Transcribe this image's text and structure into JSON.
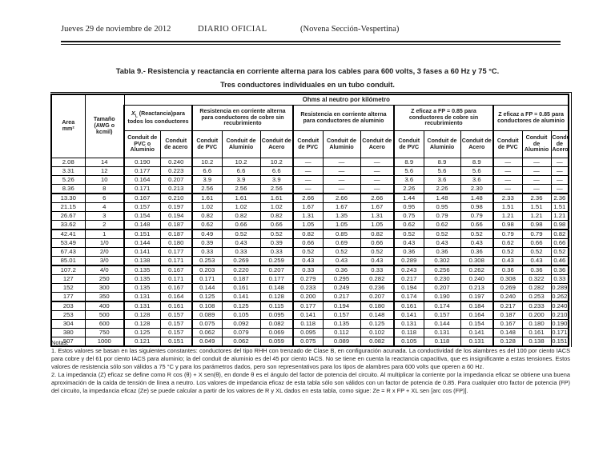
{
  "page_header": {
    "date": "Jueves 29 de noviembre de 2012",
    "publication": "DIARIO OFICIAL",
    "section": "(Novena Sección-Vespertina)"
  },
  "title": "Tabla 9.- Resistencia y reactancia en corriente alterna para los cables para 600 volts, 3 fases a 60 Hz y 75 °C.",
  "subtitle": "Tres conductores individuales en un tubo conduit.",
  "table": {
    "header": {
      "area_line1": "Area",
      "area_line2": "mm²",
      "size": "Tamaño (AWG o kcmil)",
      "ohms": "Ohms al neutro por kilómetro",
      "groups": [
        {
          "label_x": "X",
          "label_sub": "L",
          "label_rest": " (Reactancia)para todos los conductores",
          "cols": [
            "Conduit de PVC o Aluminio",
            "Conduit de acero"
          ]
        },
        {
          "label": "Resistencia en corriente alterna para conductores de cobre sin recubrimiento",
          "cols": [
            "Conduit de PVC",
            "Conduit de Aluminio",
            "Conduit de Acero"
          ]
        },
        {
          "label": "Resistencia en corriente alterna para conductores de aluminio",
          "cols": [
            "Conduit de PVC",
            "Conduit de Aluminio",
            "Conduit de Acero"
          ]
        },
        {
          "label": "Z eficaz a FP = 0.85 para conductores de cobre sin recubrimiento",
          "cols": [
            "Conduit de PVC",
            "Conduit de Aluminio",
            "Conduit de Acero"
          ]
        },
        {
          "label": "Z eficaz a FP = 0.85 para conductores de aluminio",
          "cols": [
            "Conduit de PVC",
            "Conduit de Aluminio",
            "Conduit de Acero"
          ]
        }
      ]
    },
    "row_groups": [
      [
        [
          "2.08",
          "14",
          "0.190",
          "0.240",
          "10.2",
          "10.2",
          "10.2",
          "—",
          "—",
          "—",
          "8.9",
          "8.9",
          "8.9",
          "—",
          "—",
          "—"
        ],
        [
          "3.31",
          "12",
          "0.177",
          "0.223",
          "6.6",
          "6.6",
          "6.6",
          "—",
          "—",
          "—",
          "5.6",
          "5.6",
          "5.6",
          "—",
          "—",
          "—"
        ],
        [
          "5.26",
          "10",
          "0.164",
          "0.207",
          "3.9",
          "3.9",
          "3.9",
          "—",
          "—",
          "—",
          "3.6",
          "3.6",
          "3.6",
          "—",
          "—",
          "—"
        ],
        [
          "8.36",
          "8",
          "0.171",
          "0.213",
          "2.56",
          "2.56",
          "2.56",
          "—",
          "—",
          "—",
          "2.26",
          "2.26",
          "2.30",
          "—",
          "—",
          "—"
        ]
      ],
      [
        [
          "13.30",
          "6",
          "0.167",
          "0.210",
          "1.61",
          "1.61",
          "1.61",
          "2.66",
          "2.66",
          "2.66",
          "1.44",
          "1.48",
          "1.48",
          "2.33",
          "2.36",
          "2.36"
        ],
        [
          "21.15",
          "4",
          "0.157",
          "0.197",
          "1.02",
          "1.02",
          "1.02",
          "1.67",
          "1.67",
          "1.67",
          "0.95",
          "0.95",
          "0.98",
          "1.51",
          "1.51",
          "1.51"
        ],
        [
          "26.67",
          "3",
          "0.154",
          "0.194",
          "0.82",
          "0.82",
          "0.82",
          "1.31",
          "1.35",
          "1.31",
          "0.75",
          "0.79",
          "0.79",
          "1.21",
          "1.21",
          "1.21"
        ],
        [
          "33.62",
          "2",
          "0.148",
          "0.187",
          "0.62",
          "0.66",
          "0.66",
          "1.05",
          "1.05",
          "1.05",
          "0.62",
          "0.62",
          "0.66",
          "0.98",
          "0.98",
          "0.98"
        ]
      ],
      [
        [
          "42.41",
          "1",
          "0.151",
          "0.187",
          "0.49",
          "0.52",
          "0.52",
          "0.82",
          "0.85",
          "0.82",
          "0.52",
          "0.52",
          "0.52",
          "0.79",
          "0.79",
          "0.82"
        ],
        [
          "53.49",
          "1/0",
          "0.144",
          "0.180",
          "0.39",
          "0.43",
          "0.39",
          "0.66",
          "0.69",
          "0.66",
          "0.43",
          "0.43",
          "0.43",
          "0.62",
          "0.66",
          "0.66"
        ],
        [
          "67.43",
          "2/0",
          "0.141",
          "0.177",
          "0.33",
          "0.33",
          "0.33",
          "0.52",
          "0.52",
          "0.52",
          "0.36",
          "0.36",
          "0.36",
          "0.52",
          "0.52",
          "0.52"
        ],
        [
          "85.01",
          "3/0",
          "0.138",
          "0.171",
          "0.253",
          "0.269",
          "0.259",
          "0.43",
          "0.43",
          "0.43",
          "0.289",
          "0.302",
          "0.308",
          "0.43",
          "0.43",
          "0.46"
        ]
      ],
      [
        [
          "107.2",
          "4/0",
          "0.135",
          "0.167",
          "0.203",
          "0.220",
          "0.207",
          "0.33",
          "0.36",
          "0.33",
          "0.243",
          "0.256",
          "0.262",
          "0.36",
          "0.36",
          "0.36"
        ],
        [
          "127",
          "250",
          "0.135",
          "0.171",
          "0.171",
          "0.187",
          "0.177",
          "0.279",
          "0.295",
          "0.282",
          "0.217",
          "0.230",
          "0.240",
          "0.308",
          "0.322",
          "0.33"
        ],
        [
          "152",
          "300",
          "0.135",
          "0.167",
          "0.144",
          "0.161",
          "0.148",
          "0.233",
          "0.249",
          "0.236",
          "0.194",
          "0.207",
          "0.213",
          "0.269",
          "0.282",
          "0.289"
        ],
        [
          "177",
          "350",
          "0.131",
          "0.164",
          "0.125",
          "0.141",
          "0.128",
          "0.200",
          "0.217",
          "0.207",
          "0.174",
          "0.190",
          "0.197",
          "0.240",
          "0.253",
          "0.262"
        ]
      ],
      [
        [
          "203",
          "400",
          "0.131",
          "0.161",
          "0.108",
          "0.125",
          "0.115",
          "0.177",
          "0.194",
          "0.180",
          "0.161",
          "0.174",
          "0.184",
          "0.217",
          "0.233",
          "0.240"
        ],
        [
          "253",
          "500",
          "0.128",
          "0.157",
          "0.089",
          "0.105",
          "0.095",
          "0.141",
          "0.157",
          "0.148",
          "0.141",
          "0.157",
          "0.164",
          "0.187",
          "0.200",
          "0.210"
        ],
        [
          "304",
          "600",
          "0.128",
          "0.157",
          "0.075",
          "0.092",
          "0.082",
          "0.118",
          "0.135",
          "0.125",
          "0.131",
          "0.144",
          "0.154",
          "0.167",
          "0.180",
          "0.190"
        ],
        [
          "380",
          "750",
          "0.125",
          "0.157",
          "0.062",
          "0.079",
          "0.069",
          "0.095",
          "0.112",
          "0.102",
          "0.118",
          "0.131",
          "0.141",
          "0.148",
          "0.161",
          "0.171"
        ],
        [
          "507",
          "1000",
          "0.121",
          "0.151",
          "0.049",
          "0.062",
          "0.059",
          "0.075",
          "0.089",
          "0.082",
          "0.105",
          "0.118",
          "0.131",
          "0.128",
          "0.138",
          "0.151"
        ]
      ]
    ]
  },
  "notes": {
    "heading": "Notas:",
    "items": [
      "1. Estos valores se basan en las siguientes constantes: conductores del tipo RHH con trenzado de Clase B, en configuración acunada. La conductividad de los alambres es del 100 por ciento IACS para cobre y del 61 por ciento IACS para aluminio; la del conduit de aluminio es del 45 por ciento IACS. No se tiene en cuenta la reactancia capacitiva, que es insignificante a estas tensiones. Estos valores de resistencia sólo son válidos a 75 °C y para los parámetros dados, pero son representativos para los tipos de alambres para 600 volts que operen a 60 Hz.",
      "2. La impedancia (Z) eficaz se define como R cos (θ) + X sen(θ), en donde θ es el ángulo del factor de potencia del circuito. Al multiplicar la corriente por la impedancia eficaz se obtiene una buena aproximación de la caída de tensión de línea a neutro. Los valores de impedancia eficaz de esta tabla sólo son válidos con un factor de potencia de 0.85. Para cualquier otro factor de potencia (FP) del circuito, la impedancia eficaz (Ze) se puede calcular a partir de los valores de R y XL dados en esta tabla, como sigue: Ze = R x FP + XL sen [arc cos (FP)]."
    ]
  }
}
